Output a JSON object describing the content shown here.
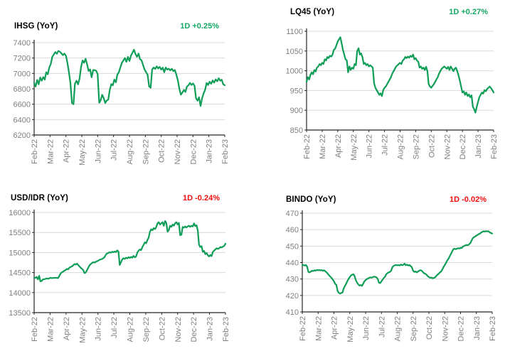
{
  "colors": {
    "line": "#0f9d58",
    "positive": "#17a765",
    "negative": "#f20d0d",
    "axis": "#262626",
    "grid": "#d9d9d9",
    "tick_label": "#7f7f7f",
    "title": "#000000",
    "background": "#ffffff"
  },
  "chart_data": [
    {
      "type": "line",
      "title": "IHSG (YoY)",
      "change_label": "1D +0.25%",
      "change_direction": "up",
      "ylim": [
        6200,
        7400
      ],
      "y_step": 200,
      "grid": true,
      "legend": "none",
      "x_labels": [
        "Feb-22",
        "Mar-22",
        "Apr-22",
        "May-22",
        "Jun-22",
        "Jul-22",
        "Aug-22",
        "Sep-22",
        "Oct-22",
        "Nov-22",
        "Dec-22",
        "Jan-23",
        "Feb-23"
      ],
      "values": [
        6877,
        6830,
        6915,
        6858,
        6948,
        6905,
        6952,
        6920,
        7015,
        6988,
        7077,
        7123,
        7215,
        7246,
        7277,
        7255,
        7292,
        7282,
        7262,
        7238,
        7258,
        7230,
        7138,
        7015,
        6877,
        6615,
        6600,
        6868,
        6905,
        6858,
        6930,
        7080,
        7168,
        7138,
        7190,
        7120,
        7032,
        7052,
        6950,
        7045,
        7042,
        7035,
        6990,
        6618,
        6652,
        6722,
        6680,
        6615,
        6650,
        6660,
        6785,
        6862,
        6845,
        6920,
        6885,
        6985,
        7015,
        7077,
        7138,
        7168,
        7200,
        7150,
        7215,
        7162,
        7231,
        7270,
        7308,
        7252,
        7215,
        7258,
        7185,
        7170,
        7110,
        7050,
        7015,
        6985,
        6830,
        6815,
        7050,
        7077,
        7058,
        7092,
        7065,
        7085,
        7050,
        7075,
        7015,
        7077,
        7050,
        7062,
        7040,
        7060,
        7030,
        7045,
        6985,
        6908,
        6800,
        6723,
        6752,
        6785,
        6760,
        6830,
        6846,
        6877,
        6850,
        6870,
        6840,
        6677,
        6646,
        6690,
        6578,
        6677,
        6738,
        6785,
        6877,
        6850,
        6892,
        6865,
        6908,
        6880,
        6922,
        6898,
        6938,
        6905,
        6918,
        6858,
        6846
      ]
    },
    {
      "type": "line",
      "title": "LQ45 (YoY)",
      "change_label": "1D +0.27%",
      "change_direction": "up",
      "ylim": [
        850,
        1100
      ],
      "y_step": 50,
      "grid": true,
      "legend": "none",
      "x_labels": [
        "Feb-22",
        "Mar-22",
        "Apr-22",
        "May-22",
        "Jun-22",
        "Jul-22",
        "Aug-22",
        "Sep-22",
        "Oct-22",
        "Nov-22",
        "Dec-22",
        "Jan-23",
        "Feb-23"
      ],
      "values": [
        972,
        984,
        978,
        990,
        996,
        991,
        1002,
        998,
        1008,
        1011,
        1017,
        1014,
        1020,
        1017,
        1029,
        1026,
        1035,
        1032,
        1038,
        1036,
        1041,
        1053,
        1056,
        1065,
        1074,
        1080,
        1085,
        1070,
        1053,
        1041,
        1029,
        1026,
        996,
        1011,
        1002,
        1008,
        1005,
        1017,
        1014,
        1050,
        1057,
        1041,
        1044,
        1035,
        1017,
        1020,
        1014,
        1017,
        1011,
        1014,
        1011,
        1008,
        968,
        957,
        951,
        945,
        939,
        943,
        936,
        951,
        957,
        960,
        966,
        972,
        978,
        984,
        993,
        999,
        1005,
        1011,
        1014,
        1017,
        1020,
        1017,
        1026,
        1029,
        1035,
        1032,
        1036,
        1033,
        1038,
        1035,
        1041,
        1029,
        1032,
        1026,
        1023,
        1008,
        1011,
        1005,
        1008,
        1002,
        1010,
        999,
        966,
        960,
        957,
        962,
        966,
        972,
        978,
        984,
        993,
        999,
        1005,
        1008,
        1011,
        1008,
        1005,
        1010,
        1002,
        1011,
        1005,
        999,
        1005,
        1008,
        999,
        988,
        975,
        960,
        945,
        948,
        939,
        945,
        936,
        940,
        933,
        938,
        909,
        903,
        894,
        909,
        921,
        933,
        939,
        945,
        942,
        951,
        948,
        954,
        957,
        960,
        956,
        951,
        945
      ]
    },
    {
      "type": "line",
      "title": "USD/IDR (YoY)",
      "change_label": "1D -0.24%",
      "change_direction": "down",
      "ylim": [
        13500,
        16000
      ],
      "y_step": 500,
      "grid": true,
      "legend": "none",
      "x_labels": [
        "Feb-22",
        "Mar-22",
        "Apr-22",
        "May-22",
        "Jun-22",
        "Jul-22",
        "Aug-22",
        "Sep-22",
        "Oct-22",
        "Nov-22",
        "Dec-22",
        "Jan-23",
        "Feb-23"
      ],
      "values": [
        14360,
        14370,
        14390,
        14330,
        14420,
        14280,
        14290,
        14330,
        14335,
        14340,
        14355,
        14345,
        14355,
        14370,
        14360,
        14365,
        14370,
        14365,
        14370,
        14360,
        14416,
        14475,
        14505,
        14522,
        14546,
        14563,
        14593,
        14580,
        14622,
        14640,
        14652,
        14681,
        14711,
        14700,
        14723,
        14690,
        14652,
        14620,
        14593,
        14563,
        14486,
        14504,
        14560,
        14622,
        14681,
        14711,
        14740,
        14758,
        14748,
        14770,
        14782,
        14800,
        14817,
        14829,
        14840,
        14859,
        14888,
        14947,
        14977,
        14989,
        15007,
        14997,
        15018,
        15008,
        15024,
        15010,
        15054,
        15020,
        14690,
        14760,
        14830,
        14859,
        14840,
        14870,
        14855,
        14885,
        14865,
        14890,
        14870,
        14915,
        14880,
        14900,
        15000,
        15048,
        15077,
        15060,
        15136,
        15195,
        15254,
        15230,
        15313,
        15372,
        15520,
        15580,
        15555,
        15609,
        15585,
        15638,
        15727,
        15757,
        15698,
        15730,
        15757,
        15668,
        15786,
        15740,
        15520,
        15560,
        15668,
        15640,
        15697,
        15670,
        15727,
        15757,
        15700,
        15740,
        15432,
        15445,
        15638,
        15620,
        15650,
        15625,
        15650,
        15668,
        15640,
        15668,
        15650,
        15727,
        15660,
        15680,
        15549,
        15195,
        15136,
        15160,
        15018,
        15040,
        14960,
        14990,
        14930,
        14900,
        14940,
        14910,
        15018,
        15047,
        15077,
        15106,
        15090,
        15106,
        15136,
        15125,
        15148,
        15166,
        15220
      ]
    },
    {
      "type": "line",
      "title": "BINDO (YoY)",
      "change_label": "1D -0.02%",
      "change_direction": "down",
      "ylim": [
        410,
        470
      ],
      "y_step": 10,
      "grid": true,
      "legend": "none",
      "x_labels": [
        "Feb-22",
        "Mar-22",
        "Apr-22",
        "May-22",
        "Jun-22",
        "Jul-22",
        "Aug-22",
        "Sep-22",
        "Oct-22",
        "Nov-22",
        "Dec-22",
        "Jan-23",
        "Feb-23"
      ],
      "values": [
        438.3,
        438.5,
        438.2,
        438.5,
        437.5,
        434.3,
        434.0,
        434.5,
        435.0,
        434.8,
        435.3,
        435.1,
        435.5,
        435.3,
        435.5,
        435.2,
        435.4,
        435.0,
        435.3,
        434.6,
        434.0,
        433.2,
        432.2,
        431.4,
        430.7,
        429.7,
        428.6,
        427.1,
        426.4,
        422.8,
        421.6,
        421.2,
        421.5,
        421.8,
        424.2,
        425.7,
        427.1,
        428.6,
        430.0,
        431.2,
        432.2,
        432.6,
        432.9,
        431.7,
        429.3,
        427.8,
        426.8,
        426.0,
        426.3,
        425.8,
        427.1,
        428.6,
        429.3,
        430.0,
        430.3,
        430.7,
        431.0,
        430.8,
        431.2,
        431.4,
        431.3,
        431.0,
        430.0,
        427.8,
        427.5,
        428.6,
        429.7,
        430.7,
        431.4,
        432.9,
        433.6,
        434.0,
        434.3,
        435.0,
        437.2,
        438.0,
        438.3,
        438.5,
        438.3,
        438.5,
        438.2,
        438.8,
        438.4,
        438.6,
        439.3,
        438.4,
        438.7,
        438.2,
        438.5,
        437.9,
        437.2,
        435.0,
        434.3,
        434.6,
        434.0,
        434.5,
        435.0,
        435.4,
        435.1,
        434.3,
        433.5,
        433.2,
        432.6,
        431.8,
        431.2,
        430.7,
        430.9,
        430.4,
        430.7,
        430.9,
        431.8,
        432.6,
        433.2,
        434.0,
        434.5,
        435.7,
        437.2,
        438.5,
        439.7,
        441.2,
        442.2,
        443.6,
        445.1,
        446.5,
        448.0,
        448.4,
        448.1,
        448.4,
        448.7,
        448.5,
        449.0,
        448.8,
        449.7,
        450.1,
        450.4,
        450.7,
        450.5,
        451.1,
        451.8,
        453.3,
        454.7,
        455.4,
        455.8,
        456.4,
        456.8,
        457.3,
        457.6,
        458.3,
        458.7,
        459.0,
        458.8,
        459.1,
        458.9,
        459.0,
        458.3,
        457.9,
        457.6
      ]
    }
  ]
}
